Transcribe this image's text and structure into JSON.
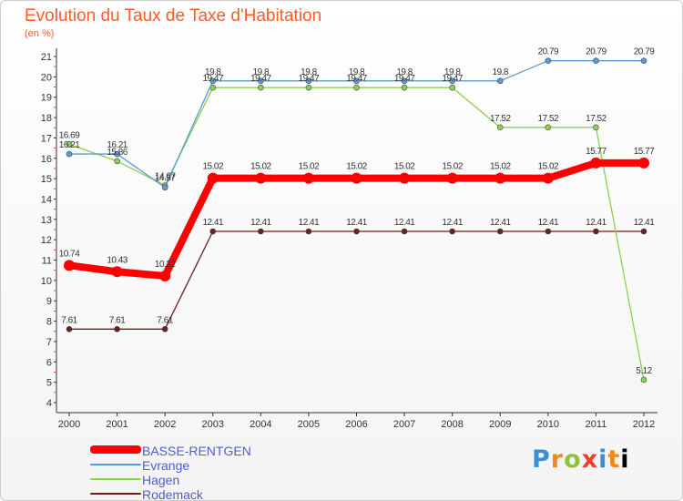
{
  "title": "Evolution du Taux de Taxe d'Habitation",
  "subtitle": "(en %)",
  "logo_letters": [
    "P",
    "r",
    "o",
    "x",
    "i",
    "t",
    "i"
  ],
  "chart_data": {
    "type": "line",
    "title": "Evolution du Taux de Taxe d'Habitation",
    "subtitle": "(en %)",
    "xlabel": "",
    "ylabel": "",
    "x": [
      "2000",
      "2001",
      "2002",
      "2003",
      "2004",
      "2005",
      "2006",
      "2007",
      "2008",
      "2009",
      "2010",
      "2011",
      "2012"
    ],
    "ylim": [
      4,
      21
    ],
    "yticks": [
      "4",
      "5",
      "6",
      "7",
      "8",
      "9",
      "10",
      "11",
      "12",
      "13",
      "14",
      "15",
      "16",
      "17",
      "18",
      "19",
      "20",
      "21"
    ],
    "grid": false,
    "legend_position": "bottom-left",
    "series": [
      {
        "name": "Rodemack",
        "color": "#6b1f1f",
        "values": [
          7.61,
          7.61,
          7.61,
          12.41,
          12.41,
          12.41,
          12.41,
          12.41,
          12.41,
          12.41,
          12.41,
          12.41,
          12.41
        ],
        "labels": [
          "7.61",
          "7.61",
          "7.61",
          "12.41",
          "12.41",
          "12.41",
          "12.41",
          "12.41",
          "12.41",
          "12.41",
          "12.41",
          "12.41",
          "12.41"
        ]
      },
      {
        "name": "Hagen",
        "color": "#8cd04f",
        "values": [
          16.69,
          15.86,
          14.67,
          19.47,
          19.47,
          19.47,
          19.47,
          19.47,
          19.47,
          17.52,
          17.52,
          17.52,
          5.12
        ],
        "labels": [
          "16.69",
          "15.86",
          "14.67",
          "19.47",
          "19.47",
          "19.47",
          "19.47",
          "19.47",
          "19.47",
          "17.52",
          "17.52",
          "17.52",
          "5.12"
        ]
      },
      {
        "name": "Evrange",
        "color": "#5a9bd5",
        "values": [
          16.21,
          16.21,
          14.57,
          19.8,
          19.8,
          19.8,
          19.8,
          19.8,
          19.8,
          19.8,
          20.79,
          20.79,
          20.79
        ],
        "labels": [
          "16.21",
          "16.21",
          "14.57",
          "19.8",
          "19.8",
          "19.8",
          "19.8",
          "19.8",
          "19.8",
          "19.8",
          "20.79",
          "20.79",
          "20.79"
        ]
      },
      {
        "name": "BASSE-RENTGEN",
        "color": "#ff0000",
        "values": [
          10.74,
          10.43,
          10.22,
          15.02,
          15.02,
          15.02,
          15.02,
          15.02,
          15.02,
          15.02,
          15.02,
          15.77,
          15.77
        ],
        "labels": [
          "10.74",
          "10.43",
          "10.22",
          "15.02",
          "15.02",
          "15.02",
          "15.02",
          "15.02",
          "15.02",
          "15.02",
          "15.02",
          "15.77",
          "15.77"
        ]
      }
    ],
    "legend": [
      "BASSE-RENTGEN",
      "Evrange",
      "Hagen",
      "Rodemack"
    ]
  }
}
